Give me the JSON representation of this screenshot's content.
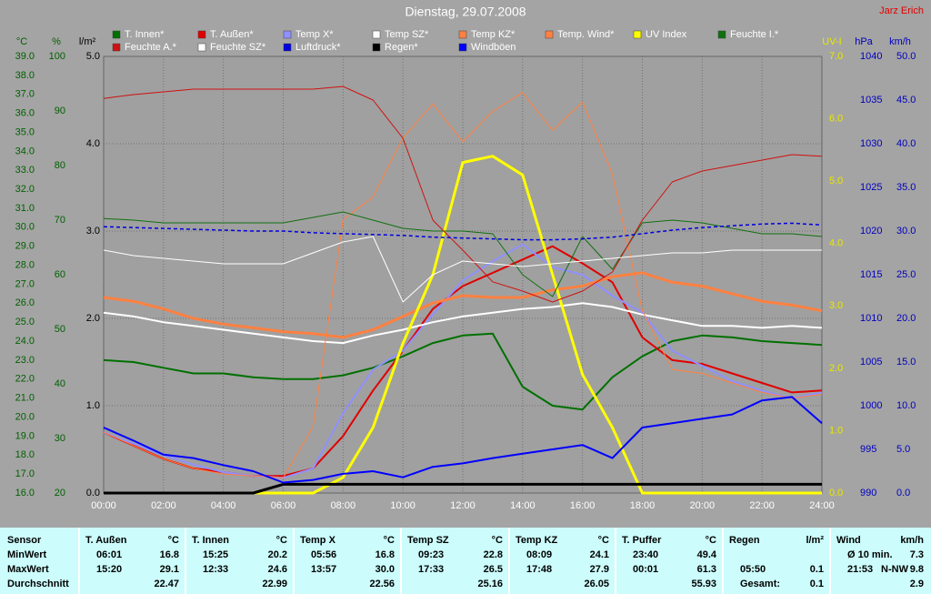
{
  "chart_data": {
    "type": "line",
    "title": "Dienstag, 29.07.2008",
    "author": "Jarz Erich",
    "x": [
      0,
      1,
      2,
      3,
      4,
      5,
      6,
      7,
      8,
      9,
      10,
      11,
      12,
      13,
      14,
      15,
      16,
      17,
      18,
      19,
      20,
      21,
      22,
      23,
      24
    ],
    "xlim": [
      0,
      24
    ],
    "xticks": [
      {
        "value": 0,
        "label": "00:00"
      },
      {
        "value": 2,
        "label": "02:00"
      },
      {
        "value": 4,
        "label": "04:00"
      },
      {
        "value": 6,
        "label": "06:00"
      },
      {
        "value": 8,
        "label": "08:00"
      },
      {
        "value": 10,
        "label": "10:00"
      },
      {
        "value": 12,
        "label": "12:00"
      },
      {
        "value": 14,
        "label": "14:00"
      },
      {
        "value": 16,
        "label": "16:00"
      },
      {
        "value": 18,
        "label": "18:00"
      },
      {
        "value": 20,
        "label": "20:00"
      },
      {
        "value": 22,
        "label": "22:00"
      },
      {
        "value": 24,
        "label": "24:00"
      }
    ],
    "grid": true,
    "axes": [
      {
        "label": "°C",
        "color": "#006000",
        "ylim": [
          16,
          39
        ],
        "yticks": [
          {
            "value": 16,
            "label": "16.0"
          },
          {
            "value": 17,
            "label": "17.0"
          },
          {
            "value": 18,
            "label": "18.0"
          },
          {
            "value": 19,
            "label": "19.0"
          },
          {
            "value": 20,
            "label": "20.0"
          },
          {
            "value": 21,
            "label": "21.0"
          },
          {
            "value": 22,
            "label": "22.0"
          },
          {
            "value": 23,
            "label": "23.0"
          },
          {
            "value": 24,
            "label": "24.0"
          },
          {
            "value": 25,
            "label": "25.0"
          },
          {
            "value": 26,
            "label": "26.0"
          },
          {
            "value": 27,
            "label": "27.0"
          },
          {
            "value": 28,
            "label": "28.0"
          },
          {
            "value": 29,
            "label": "29.0"
          },
          {
            "value": 30,
            "label": "30.0"
          },
          {
            "value": 31,
            "label": "31.0"
          },
          {
            "value": 32,
            "label": "32.0"
          },
          {
            "value": 33,
            "label": "33.0"
          },
          {
            "value": 34,
            "label": "34.0"
          },
          {
            "value": 35,
            "label": "35.0"
          },
          {
            "value": 36,
            "label": "36.0"
          },
          {
            "value": 37,
            "label": "37.0"
          },
          {
            "value": 38,
            "label": "38.0"
          },
          {
            "value": 39,
            "label": "39.0"
          }
        ]
      },
      {
        "label": "%",
        "color": "#006000",
        "ylim": [
          20,
          100
        ],
        "yticks": [
          20,
          30,
          40,
          50,
          60,
          70,
          80,
          90,
          100
        ]
      },
      {
        "label": "l/m²",
        "color": "#000000",
        "ylim": [
          0,
          5
        ],
        "grid": true,
        "yticks": [
          {
            "value": 0,
            "label": "0.0"
          },
          {
            "value": 1,
            "label": "1.0"
          },
          {
            "value": 2,
            "label": "2.0"
          },
          {
            "value": 3,
            "label": "3.0"
          },
          {
            "value": 4,
            "label": "4.0"
          },
          {
            "value": 5,
            "label": "5.0"
          }
        ]
      },
      {
        "label": "UV-I",
        "color": "#e8e800",
        "ylim": [
          0,
          7
        ],
        "yticks": [
          {
            "value": 0,
            "label": "0.0"
          },
          {
            "value": 1,
            "label": "1.0"
          },
          {
            "value": 2,
            "label": "2.0"
          },
          {
            "value": 3,
            "label": "3.0"
          },
          {
            "value": 4,
            "label": "4.0"
          },
          {
            "value": 5,
            "label": "5.0"
          },
          {
            "value": 6,
            "label": "6.0"
          },
          {
            "value": 7,
            "label": "7.0"
          }
        ]
      },
      {
        "label": "hPa",
        "color": "#0000c0",
        "ylim": [
          990,
          1040
        ],
        "yticks": [
          990,
          995,
          1000,
          1005,
          1010,
          1015,
          1020,
          1025,
          1030,
          1035,
          1040
        ]
      },
      {
        "label": "km/h",
        "color": "#0000c0",
        "ylim": [
          0,
          50
        ],
        "yticks": [
          {
            "value": 0,
            "label": "0.0"
          },
          {
            "value": 5,
            "label": "5.0"
          },
          {
            "value": 10,
            "label": "10.0"
          },
          {
            "value": 15,
            "label": "15.0"
          },
          {
            "value": 20,
            "label": "20.0"
          },
          {
            "value": 25,
            "label": "25.0"
          },
          {
            "value": 30,
            "label": "30.0"
          },
          {
            "value": 35,
            "label": "35.0"
          },
          {
            "value": 40,
            "label": "40.0"
          },
          {
            "value": 45,
            "label": "45.0"
          },
          {
            "value": 50,
            "label": "50.0"
          }
        ]
      }
    ],
    "series": [
      {
        "name": "T. Innen*",
        "color": "#007000",
        "axis": 0,
        "width": 2,
        "values": [
          23.0,
          22.9,
          22.6,
          22.3,
          22.3,
          22.1,
          22.0,
          22.0,
          22.2,
          22.6,
          23.2,
          23.9,
          24.3,
          24.4,
          21.6,
          20.6,
          20.4,
          22.1,
          23.2,
          24.0,
          24.3,
          24.2,
          24.0,
          23.9,
          23.8
        ]
      },
      {
        "name": "T. Außen*",
        "color": "#e00000",
        "axis": 0,
        "width": 2,
        "values": [
          19.2,
          18.5,
          17.8,
          17.3,
          17.1,
          16.9,
          16.9,
          17.3,
          19.0,
          21.4,
          23.5,
          25.7,
          26.9,
          27.6,
          28.3,
          29.0,
          28.1,
          27.1,
          24.2,
          23.0,
          22.8,
          22.3,
          21.8,
          21.3,
          21.4
        ]
      },
      {
        "name": "Temp X*",
        "color": "#9090ff",
        "axis": 0,
        "width": 2,
        "values": [
          19.2,
          18.6,
          18.0,
          17.5,
          17.1,
          16.9,
          16.8,
          17.3,
          20.2,
          22.5,
          23.5,
          25.4,
          27.2,
          28.2,
          29.1,
          27.9,
          27.5,
          26.4,
          25.5,
          23.5,
          22.7,
          21.9,
          21.4,
          21.0,
          21.3
        ]
      },
      {
        "name": "Temp SZ*",
        "color": "#ffffff",
        "axis": 0,
        "width": 2,
        "values": [
          25.5,
          25.3,
          25.0,
          24.8,
          24.6,
          24.4,
          24.2,
          24.0,
          23.9,
          24.3,
          24.6,
          25.0,
          25.3,
          25.5,
          25.7,
          25.8,
          26.0,
          25.8,
          25.4,
          25.1,
          24.8,
          24.8,
          24.7,
          24.8,
          24.7
        ]
      },
      {
        "name": "Temp KZ*",
        "color": "#ff8040",
        "axis": 0,
        "width": 3,
        "values": [
          26.3,
          26.1,
          25.7,
          25.2,
          24.9,
          24.7,
          24.5,
          24.4,
          24.2,
          24.6,
          25.3,
          26.0,
          26.4,
          26.3,
          26.3,
          26.7,
          26.9,
          27.4,
          27.6,
          27.1,
          26.9,
          26.5,
          26.1,
          25.9,
          25.6
        ]
      },
      {
        "name": "Temp. Wind*",
        "color": "#ff8040",
        "axis": 0,
        "width": 1,
        "values": [
          19.2,
          18.5,
          17.8,
          17.3,
          17.0,
          16.9,
          16.8,
          19.5,
          30.4,
          31.6,
          34.7,
          36.5,
          34.5,
          36.1,
          37.1,
          35.1,
          36.6,
          32.8,
          25.6,
          22.5,
          22.3,
          21.8,
          21.3,
          21.0,
          21.2
        ]
      },
      {
        "name": "UV Index",
        "color": "#ffff00",
        "axis": 3,
        "width": 3,
        "values": [
          0,
          0,
          0,
          0,
          0,
          0,
          0,
          0,
          0.25,
          1.05,
          2.4,
          3.5,
          5.3,
          5.4,
          5.1,
          3.5,
          1.9,
          1.05,
          0,
          0,
          0,
          0,
          0,
          0,
          0
        ]
      },
      {
        "name": "Feuchte I.*",
        "color": "#107010",
        "axis": 1,
        "width": 1,
        "values": [
          70.3,
          70,
          69.5,
          69.5,
          69.5,
          69.5,
          69.5,
          70.5,
          71.5,
          70,
          68.5,
          68,
          68,
          67.5,
          60,
          56,
          67,
          61,
          69.5,
          70,
          69.5,
          68.5,
          67.5,
          67.5,
          67
        ]
      },
      {
        "name": "Feuchte A.*",
        "color": "#d01010",
        "axis": 1,
        "width": 1,
        "values": [
          92.3,
          93,
          93.5,
          94,
          94,
          94,
          94,
          94,
          94.5,
          92,
          85,
          70,
          64.5,
          58.7,
          57,
          55,
          57,
          60.5,
          70,
          77,
          79,
          80,
          81,
          82,
          81.7
        ]
      },
      {
        "name": "Feuchte SZ*",
        "color": "#ffffff",
        "axis": 1,
        "width": 1,
        "values": [
          64.5,
          63.5,
          63,
          62.5,
          62,
          62,
          62,
          64,
          66,
          67,
          55,
          60,
          62.5,
          62,
          61.5,
          62,
          62.5,
          63,
          63.5,
          64,
          64,
          64.5,
          64.5,
          64.5,
          64.5
        ]
      },
      {
        "name": "Luftdruck*",
        "color": "#0000e0",
        "axis": 4,
        "width": 1.5,
        "dash": true,
        "values": [
          1020.5,
          1020.4,
          1020.3,
          1020.2,
          1020.1,
          1020.0,
          1020.0,
          1019.8,
          1019.7,
          1019.6,
          1019.5,
          1019.3,
          1019.2,
          1019.1,
          1019.0,
          1019.0,
          1019.1,
          1019.3,
          1019.7,
          1020.1,
          1020.4,
          1020.6,
          1020.8,
          1020.9,
          1020.7
        ]
      },
      {
        "name": "Regen*",
        "color": "#000000",
        "axis": 2,
        "width": 3,
        "values": [
          0,
          0,
          0,
          0,
          0,
          0,
          0.1,
          0.1,
          0.1,
          0.1,
          0.1,
          0.1,
          0.1,
          0.1,
          0.1,
          0.1,
          0.1,
          0.1,
          0.1,
          0.1,
          0.1,
          0.1,
          0.1,
          0.1,
          0.1
        ]
      },
      {
        "name": "Windböen",
        "color": "#0000ff",
        "axis": 5,
        "width": 2,
        "values": [
          7.5,
          6,
          4.4,
          4,
          3.2,
          2.5,
          1.2,
          1.5,
          2.2,
          2.5,
          1.8,
          3,
          3.4,
          4,
          4.5,
          5,
          5.5,
          4,
          7.5,
          8,
          8.5,
          9,
          10.6,
          11,
          8
        ]
      }
    ]
  },
  "table": {
    "row_labels": [
      "Sensor",
      "MinWert",
      "MaxWert",
      "Durchschnitt"
    ],
    "columns": [
      {
        "name": "T. Außen",
        "unit": "°C",
        "cells": [
          [
            "06:01",
            "16.8"
          ],
          [
            "15:20",
            "29.1"
          ],
          [
            "22.47"
          ]
        ]
      },
      {
        "name": "T. Innen",
        "unit": "°C",
        "cells": [
          [
            "15:25",
            "20.2"
          ],
          [
            "12:33",
            "24.6"
          ],
          [
            "22.99"
          ]
        ]
      },
      {
        "name": "Temp X",
        "unit": "°C",
        "cells": [
          [
            "05:56",
            "16.8"
          ],
          [
            "13:57",
            "30.0"
          ],
          [
            "22.56"
          ]
        ]
      },
      {
        "name": "Temp SZ",
        "unit": "°C",
        "cells": [
          [
            "09:23",
            "22.8"
          ],
          [
            "17:33",
            "26.5"
          ],
          [
            "25.16"
          ]
        ]
      },
      {
        "name": "Temp KZ",
        "unit": "°C",
        "cells": [
          [
            "08:09",
            "24.1"
          ],
          [
            "17:48",
            "27.9"
          ],
          [
            "26.05"
          ]
        ]
      },
      {
        "name": "T. Puffer",
        "unit": "°C",
        "cells": [
          [
            "23:40",
            "49.4"
          ],
          [
            "00:01",
            "61.3"
          ],
          [
            "55.93"
          ]
        ]
      },
      {
        "name": "Regen",
        "unit": "l/m²",
        "cells": [
          [],
          [
            "05:50",
            "0.1"
          ],
          [
            "Gesamt:",
            "0.1"
          ]
        ]
      },
      {
        "name": "Wind",
        "unit": "km/h",
        "cells": [
          [
            "Ø 10 min.",
            "7.3"
          ],
          [
            "21:53",
            "N-NW",
            "9.8"
          ],
          [
            "2.9"
          ]
        ]
      }
    ]
  }
}
